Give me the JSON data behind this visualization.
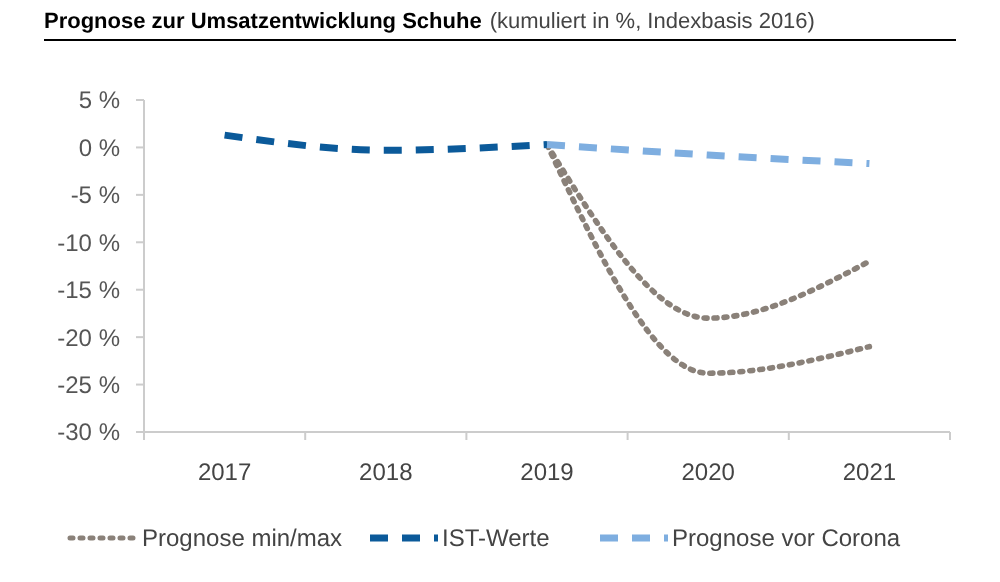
{
  "chart_data": {
    "type": "line",
    "title": "Prognose zur Umsatzentwicklung Schuhe",
    "subtitle": "(kumuliert in %, Indexbasis 2016)",
    "categories": [
      "2017",
      "2018",
      "2019",
      "2020",
      "2021"
    ],
    "ylim": [
      -30,
      5
    ],
    "yticks": [
      {
        "value": 5,
        "label": "5 %"
      },
      {
        "value": 0,
        "label": "0 %"
      },
      {
        "value": -5,
        "label": "-5 %"
      },
      {
        "value": -10,
        "label": "-10 %"
      },
      {
        "value": -15,
        "label": "-15 %"
      },
      {
        "value": -20,
        "label": "-20 %"
      },
      {
        "value": -25,
        "label": "-25 %"
      },
      {
        "value": -30,
        "label": "-30 %"
      }
    ],
    "series": [
      {
        "name": "Prognose min/max",
        "color": "#8a8179",
        "line_style": "dotted",
        "values": [
          null,
          null,
          0.3,
          -18,
          -12
        ]
      },
      {
        "color": "#8a8179",
        "line_style": "dotted",
        "values": [
          null,
          null,
          0.3,
          -23.8,
          -21
        ]
      },
      {
        "name": "IST-Werte",
        "color": "#0b5a9a",
        "line_style": "dashed",
        "values": [
          1.3,
          -0.3,
          0.3,
          null,
          null
        ]
      },
      {
        "name": "Prognose vor Corona",
        "color": "#7eaee0",
        "line_style": "dashed",
        "values": [
          null,
          null,
          0.3,
          -0.8,
          -1.7
        ]
      }
    ],
    "grid": false,
    "legend": "bottom"
  }
}
